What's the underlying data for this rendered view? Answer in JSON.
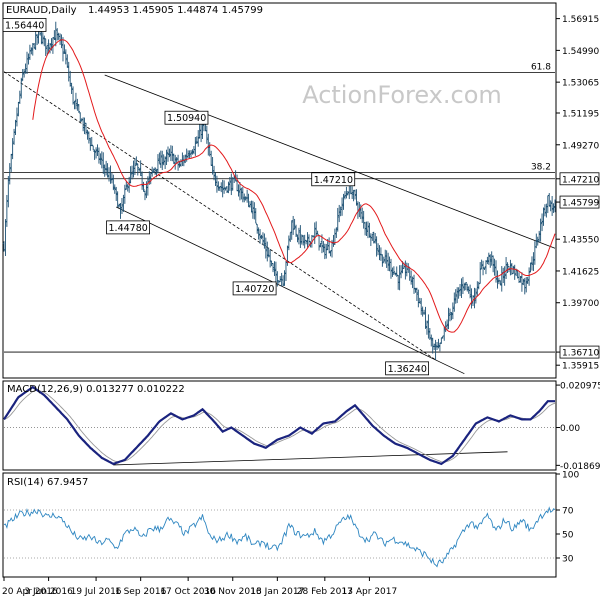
{
  "header": {
    "symbol": "EURAUD,Daily",
    "ohlc": "1.44953 1.45905 1.44874 1.45799"
  },
  "watermark": "ActionForex.com",
  "chart_data": [
    {
      "id": "price",
      "type": "ohlc",
      "ylim": [
        1.352,
        1.578
      ],
      "y_ticks": [
        "1.56915",
        "1.54990",
        "1.53065",
        "1.51195",
        "1.49270",
        "1.47210",
        "1.45799",
        "1.43550",
        "1.41625",
        "1.39700",
        "1.36710",
        "1.35915"
      ],
      "y_tick_values": [
        1.56915,
        1.5499,
        1.53065,
        1.51195,
        1.4927,
        1.4721,
        1.45799,
        1.4355,
        1.41625,
        1.397,
        1.3671,
        1.35915
      ],
      "highlight_ticks": [
        "1.47210",
        "1.45799",
        "1.36710"
      ],
      "h_levels": [
        {
          "value": 1.5365,
          "label": "61.8"
        },
        {
          "value": 1.476,
          "label": "38.2"
        },
        {
          "value": 1.4721,
          "label": ""
        },
        {
          "value": 1.3671,
          "label": ""
        }
      ],
      "annotations": [
        {
          "label": "1.56440",
          "bar": 24,
          "value": 1.5644
        },
        {
          "label": "1.50940",
          "bar": 139,
          "value": 1.5094
        },
        {
          "label": "1.44780",
          "bar": 81,
          "value": 1.4478
        },
        {
          "label": "1.47210",
          "bar": 241,
          "value": 1.4721
        },
        {
          "label": "1.40720",
          "bar": 194,
          "value": 1.4072
        },
        {
          "label": "1.36240",
          "bar": 300,
          "value": 1.3624
        }
      ],
      "ma_period": 20
    },
    {
      "id": "macd",
      "type": "line",
      "title": "MACD(12,26,9) 0.013277 0.010222",
      "ylim": [
        -0.0205,
        0.0225
      ],
      "y_ticks": [
        "0.020975",
        "0.00",
        "-0.018693"
      ],
      "y_tick_values": [
        0.020975,
        0.0,
        -0.018693
      ]
    },
    {
      "id": "rsi",
      "type": "line",
      "title": "RSI(14) 67.9457",
      "ylim": [
        15,
        100
      ],
      "y_ticks": [
        "100",
        "70",
        "50",
        "30"
      ],
      "y_tick_values": [
        100,
        70,
        50,
        30
      ]
    }
  ],
  "x_axis": {
    "tick_labels": [
      "20 Apr 2016",
      "3 Jun 2016",
      "19 Jul 2016",
      "1 Sep 2016",
      "17 Oct 2016",
      "30 Nov 2016",
      "13 Jan 2017",
      "28 Feb 2017",
      "13 Apr 2017"
    ],
    "tick_bars": [
      0,
      31,
      64,
      95,
      128,
      159,
      190,
      223,
      254
    ]
  },
  "series_anchors": {
    "price_close": [
      [
        0,
        1.432
      ],
      [
        3,
        1.47
      ],
      [
        8,
        1.505
      ],
      [
        13,
        1.535
      ],
      [
        20,
        1.552
      ],
      [
        24,
        1.56
      ],
      [
        30,
        1.552
      ],
      [
        36,
        1.56
      ],
      [
        42,
        1.548
      ],
      [
        48,
        1.52
      ],
      [
        55,
        1.505
      ],
      [
        62,
        1.49
      ],
      [
        68,
        1.482
      ],
      [
        75,
        1.47
      ],
      [
        81,
        1.452
      ],
      [
        86,
        1.47
      ],
      [
        92,
        1.48
      ],
      [
        98,
        1.465
      ],
      [
        104,
        1.478
      ],
      [
        110,
        1.484
      ],
      [
        116,
        1.486
      ],
      [
        122,
        1.48
      ],
      [
        128,
        1.488
      ],
      [
        134,
        1.494
      ],
      [
        139,
        1.506
      ],
      [
        145,
        1.474
      ],
      [
        152,
        1.466
      ],
      [
        160,
        1.47
      ],
      [
        166,
        1.462
      ],
      [
        172,
        1.455
      ],
      [
        178,
        1.438
      ],
      [
        184,
        1.425
      ],
      [
        188,
        1.414
      ],
      [
        194,
        1.411
      ],
      [
        200,
        1.446
      ],
      [
        204,
        1.438
      ],
      [
        210,
        1.432
      ],
      [
        216,
        1.44
      ],
      [
        222,
        1.428
      ],
      [
        228,
        1.432
      ],
      [
        234,
        1.455
      ],
      [
        240,
        1.468
      ],
      [
        244,
        1.46
      ],
      [
        250,
        1.445
      ],
      [
        256,
        1.438
      ],
      [
        262,
        1.425
      ],
      [
        268,
        1.42
      ],
      [
        274,
        1.412
      ],
      [
        280,
        1.418
      ],
      [
        286,
        1.405
      ],
      [
        292,
        1.388
      ],
      [
        298,
        1.37
      ],
      [
        302,
        1.368
      ],
      [
        308,
        1.385
      ],
      [
        314,
        1.4
      ],
      [
        320,
        1.41
      ],
      [
        326,
        1.398
      ],
      [
        332,
        1.418
      ],
      [
        338,
        1.425
      ],
      [
        344,
        1.408
      ],
      [
        350,
        1.42
      ],
      [
        356,
        1.415
      ],
      [
        362,
        1.408
      ],
      [
        368,
        1.425
      ],
      [
        374,
        1.448
      ],
      [
        378,
        1.46
      ],
      [
        381,
        1.454
      ],
      [
        383,
        1.458
      ]
    ],
    "macd": [
      [
        0,
        0.004
      ],
      [
        10,
        0.015
      ],
      [
        20,
        0.02
      ],
      [
        28,
        0.016
      ],
      [
        36,
        0.01
      ],
      [
        44,
        0.004
      ],
      [
        52,
        -0.004
      ],
      [
        60,
        -0.01
      ],
      [
        68,
        -0.015
      ],
      [
        76,
        -0.018
      ],
      [
        84,
        -0.016
      ],
      [
        92,
        -0.01
      ],
      [
        100,
        -0.004
      ],
      [
        108,
        0.003
      ],
      [
        116,
        0.007
      ],
      [
        124,
        0.004
      ],
      [
        132,
        0.006
      ],
      [
        138,
        0.009
      ],
      [
        146,
        0.003
      ],
      [
        152,
        -0.002
      ],
      [
        158,
        0.0
      ],
      [
        166,
        -0.004
      ],
      [
        174,
        -0.008
      ],
      [
        182,
        -0.01
      ],
      [
        190,
        -0.006
      ],
      [
        198,
        -0.004
      ],
      [
        206,
        0.0
      ],
      [
        214,
        -0.003
      ],
      [
        222,
        0.002
      ],
      [
        230,
        0.003
      ],
      [
        238,
        0.008
      ],
      [
        244,
        0.011
      ],
      [
        250,
        0.006
      ],
      [
        256,
        0.001
      ],
      [
        264,
        -0.004
      ],
      [
        272,
        -0.008
      ],
      [
        280,
        -0.01
      ],
      [
        288,
        -0.013
      ],
      [
        296,
        -0.016
      ],
      [
        304,
        -0.018
      ],
      [
        312,
        -0.014
      ],
      [
        320,
        -0.006
      ],
      [
        328,
        0.002
      ],
      [
        336,
        0.005
      ],
      [
        344,
        0.003
      ],
      [
        352,
        0.006
      ],
      [
        360,
        0.004
      ],
      [
        366,
        0.004
      ],
      [
        372,
        0.008
      ],
      [
        378,
        0.013
      ],
      [
        383,
        0.013
      ]
    ],
    "rsi": [
      [
        0,
        55
      ],
      [
        6,
        62
      ],
      [
        12,
        67
      ],
      [
        18,
        68
      ],
      [
        24,
        70
      ],
      [
        30,
        64
      ],
      [
        36,
        66
      ],
      [
        42,
        60
      ],
      [
        48,
        50
      ],
      [
        54,
        45
      ],
      [
        60,
        48
      ],
      [
        66,
        42
      ],
      [
        72,
        45
      ],
      [
        78,
        38
      ],
      [
        84,
        50
      ],
      [
        90,
        55
      ],
      [
        96,
        46
      ],
      [
        102,
        55
      ],
      [
        108,
        54
      ],
      [
        114,
        62
      ],
      [
        120,
        58
      ],
      [
        126,
        50
      ],
      [
        132,
        57
      ],
      [
        138,
        64
      ],
      [
        144,
        46
      ],
      [
        150,
        45
      ],
      [
        156,
        50
      ],
      [
        162,
        44
      ],
      [
        168,
        48
      ],
      [
        174,
        40
      ],
      [
        180,
        44
      ],
      [
        186,
        37
      ],
      [
        192,
        40
      ],
      [
        198,
        57
      ],
      [
        204,
        50
      ],
      [
        210,
        48
      ],
      [
        216,
        52
      ],
      [
        222,
        44
      ],
      [
        228,
        50
      ],
      [
        234,
        60
      ],
      [
        240,
        65
      ],
      [
        246,
        52
      ],
      [
        252,
        45
      ],
      [
        258,
        50
      ],
      [
        264,
        42
      ],
      [
        270,
        46
      ],
      [
        276,
        44
      ],
      [
        282,
        40
      ],
      [
        288,
        36
      ],
      [
        294,
        32
      ],
      [
        300,
        24
      ],
      [
        306,
        28
      ],
      [
        312,
        38
      ],
      [
        318,
        50
      ],
      [
        324,
        60
      ],
      [
        330,
        55
      ],
      [
        336,
        66
      ],
      [
        342,
        52
      ],
      [
        348,
        62
      ],
      [
        354,
        54
      ],
      [
        360,
        62
      ],
      [
        366,
        53
      ],
      [
        372,
        64
      ],
      [
        378,
        70
      ],
      [
        383,
        68
      ]
    ]
  }
}
